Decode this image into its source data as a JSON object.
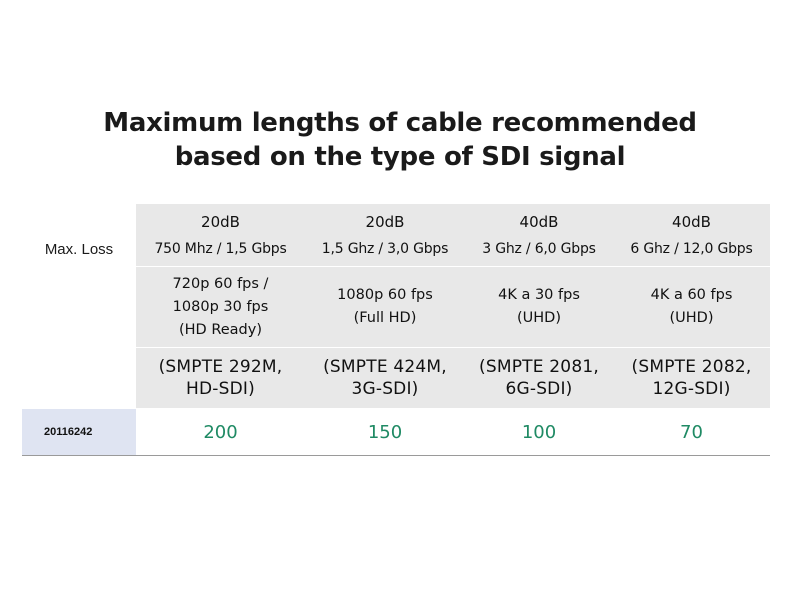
{
  "title": {
    "line1": "Maximum lengths of cable recommended",
    "line2": "based on the type of SDI signal"
  },
  "table": {
    "row_label": "Max. Loss",
    "columns": [
      {
        "loss": "20dB",
        "bandwidth": "750 Mhz / 1,5 Gbps",
        "format_lines": [
          "720p 60 fps /",
          "1080p 30 fps",
          "(HD Ready)"
        ],
        "standard_lines": [
          "(SMPTE 292M,",
          "HD-SDI)"
        ],
        "length": "200"
      },
      {
        "loss": "20dB",
        "bandwidth": "1,5 Ghz / 3,0 Gbps",
        "format_lines": [
          "1080p 60 fps",
          "(Full HD)"
        ],
        "standard_lines": [
          "(SMPTE 424M,",
          "3G-SDI)"
        ],
        "length": "150"
      },
      {
        "loss": "40dB",
        "bandwidth": "3 Ghz / 6,0 Gbps",
        "format_lines": [
          "4K a 30 fps",
          "(UHD)"
        ],
        "standard_lines": [
          "(SMPTE 2081,",
          "6G-SDI)"
        ],
        "length": "100"
      },
      {
        "loss": "40dB",
        "bandwidth": "6 Ghz / 12,0 Gbps",
        "format_lines": [
          "4K a 60 fps",
          "(UHD)"
        ],
        "standard_lines": [
          "(SMPTE 2082,",
          "12G-SDI)"
        ],
        "length": "70"
      }
    ],
    "product_code": "20116242"
  },
  "colors": {
    "header_bg": "#e8e8e8",
    "code_bg": "#dfe4f2",
    "value_green": "#1f8a64"
  }
}
